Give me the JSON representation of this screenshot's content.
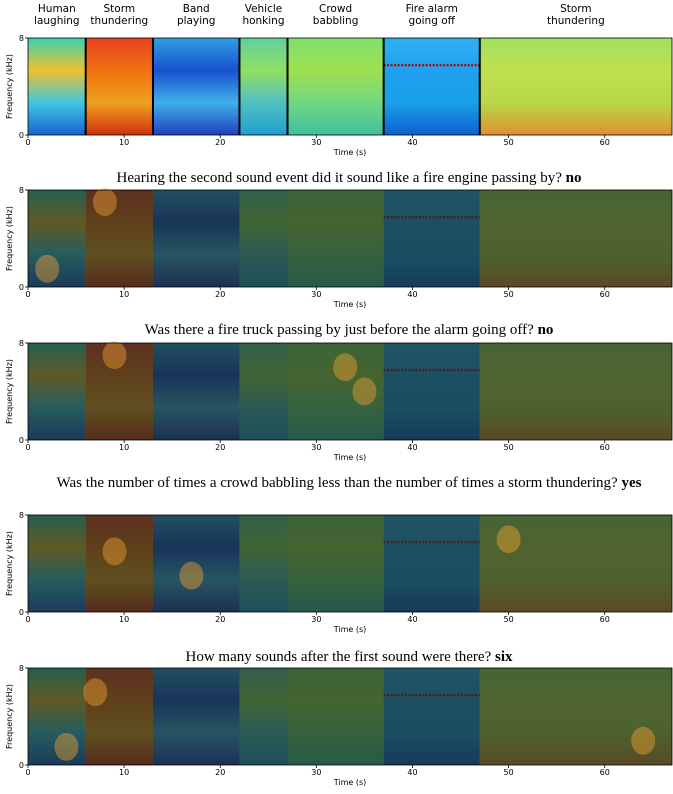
{
  "figure": {
    "events": [
      {
        "label": [
          "Human",
          "laughing"
        ],
        "start": 0,
        "end": 6
      },
      {
        "label": [
          "Storm",
          "thundering"
        ],
        "start": 6,
        "end": 13
      },
      {
        "label": [
          "Band",
          "playing"
        ],
        "start": 13,
        "end": 22
      },
      {
        "label": [
          "Vehicle",
          "honking"
        ],
        "start": 22,
        "end": 27
      },
      {
        "label": [
          "Crowd",
          "babbling"
        ],
        "start": 27,
        "end": 37
      },
      {
        "label": [
          "Fire alarm",
          "going off"
        ],
        "start": 37,
        "end": 47
      },
      {
        "label": [
          "Storm",
          "thundering"
        ],
        "start": 47,
        "end": 67
      }
    ],
    "xlim": [
      0,
      67
    ],
    "xticks": [
      0,
      10,
      20,
      30,
      40,
      50,
      60
    ],
    "ylim": [
      0,
      8
    ],
    "yticks": [
      0,
      8
    ],
    "xlabel": "Time (s)",
    "ylabel": "Frequency (kHz)",
    "questions": [
      {
        "text": "Hearing the second sound event did it sound like a fire engine passing by?",
        "answer": "no"
      },
      {
        "text": "Was there a fire truck passing by just before the alarm going off?",
        "answer": "no"
      },
      {
        "text": "Was the number of times a crowd babbling less than the number of times a storm thundering?",
        "answer": "yes"
      },
      {
        "text": "How many sounds after the first sound were there?",
        "answer": "six"
      }
    ]
  }
}
